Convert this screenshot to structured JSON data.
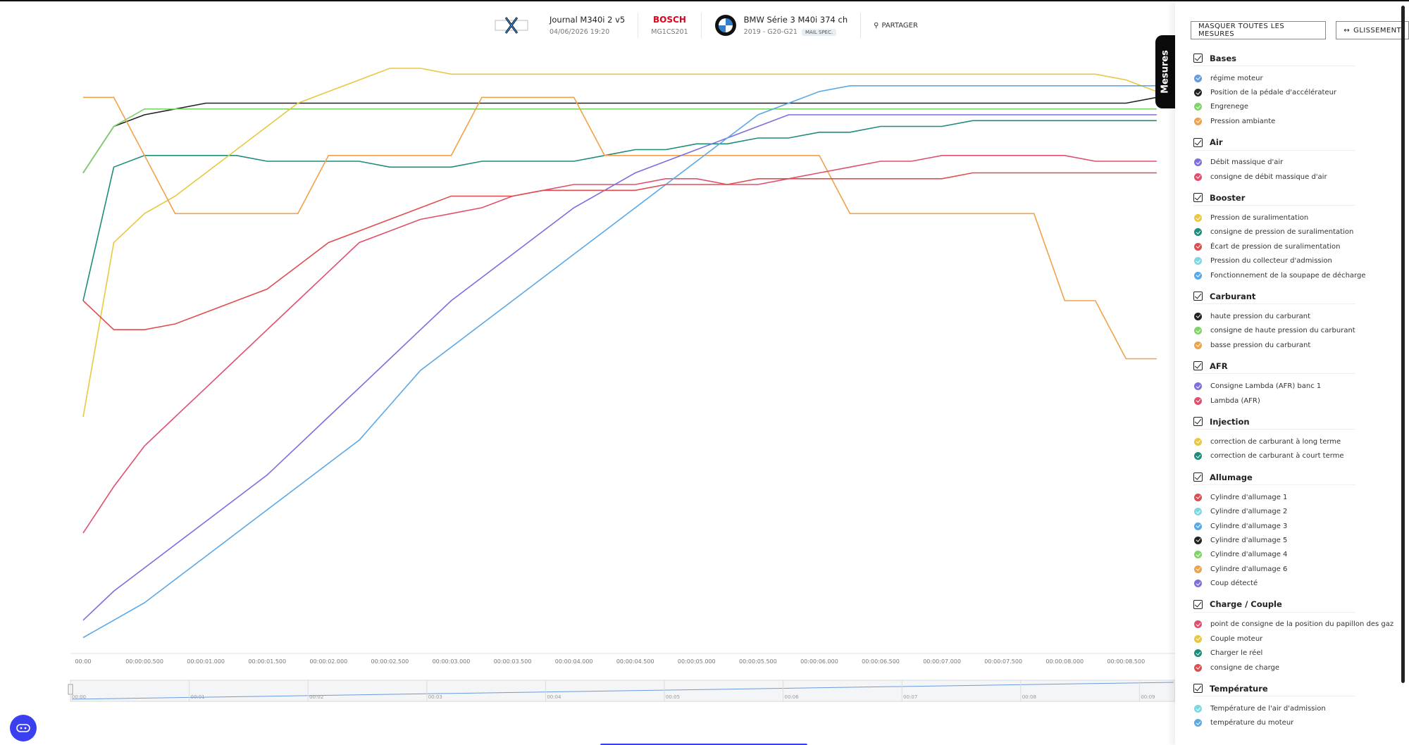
{
  "header": {
    "journal_title": "Journal M340i 2 v5",
    "journal_date": "04/06/2026 19:20",
    "ecu_brand": "BOSCH",
    "ecu_model": "MG1CS201",
    "car_name": "BMW Série 3 M40i 374 ch",
    "car_sub": "2019 - G20-G21",
    "car_badge": "MAIL SPEC.",
    "share_label": "PARTAGER"
  },
  "panel": {
    "tab_label": "Mesures",
    "hide_all_label": "MASQUER TOUTES LES MESURES",
    "slide_label": "GLISSEMENT",
    "groups": [
      {
        "title": "Bases",
        "items": [
          {
            "label": "régime moteur",
            "color": "#6a9ae0"
          },
          {
            "label": "Position de la pédale d'accélérateur",
            "color": "#222222"
          },
          {
            "label": "Engrenege",
            "color": "#7fd36a"
          },
          {
            "label": "Pression ambiante",
            "color": "#f0a24a"
          }
        ]
      },
      {
        "title": "Air",
        "items": [
          {
            "label": "Débit massique d'air",
            "color": "#7b6ee0"
          },
          {
            "label": "consigne de débit massique d'air",
            "color": "#e0506e"
          }
        ]
      },
      {
        "title": "Booster",
        "items": [
          {
            "label": "Pression de suralimentation",
            "color": "#e8c840"
          },
          {
            "label": "consigne de pression de suralimentation",
            "color": "#1e8c7a"
          },
          {
            "label": "Écart de pression de suralimentation",
            "color": "#e04d50"
          },
          {
            "label": "Pression du collecteur d'admission",
            "color": "#7ad8e0"
          },
          {
            "label": "Fonctionnement de la soupape de décharge",
            "color": "#5aa8e6"
          }
        ]
      },
      {
        "title": "Carburant",
        "items": [
          {
            "label": "haute pression du carburant",
            "color": "#222222"
          },
          {
            "label": "consigne de haute pression du carburant",
            "color": "#7fd36a"
          },
          {
            "label": "basse pression du carburant",
            "color": "#f0a24a"
          }
        ]
      },
      {
        "title": "AFR",
        "items": [
          {
            "label": "Consigne Lambda (AFR) banc 1",
            "color": "#7b6ee0"
          },
          {
            "label": "Lambda (AFR)",
            "color": "#e0506e"
          }
        ]
      },
      {
        "title": "Injection",
        "items": [
          {
            "label": "correction de carburant à long terme",
            "color": "#e8c840"
          },
          {
            "label": "correction de carburant à court terme",
            "color": "#1e8c7a"
          }
        ]
      },
      {
        "title": "Allumage",
        "items": [
          {
            "label": "Cylindre d'allumage 1",
            "color": "#e04d50"
          },
          {
            "label": "Cylindre d'allumage 2",
            "color": "#7ad8e0"
          },
          {
            "label": "Cylindre d'allumage 3",
            "color": "#5aa8e6"
          },
          {
            "label": "Cylindre d'allumage 5",
            "color": "#222222"
          },
          {
            "label": "Cylindre d'allumage 4",
            "color": "#7fd36a"
          },
          {
            "label": "Cylindre d'allumage 6",
            "color": "#f0a24a"
          },
          {
            "label": "Coup détecté",
            "color": "#7b6ee0"
          }
        ]
      },
      {
        "title": "Charge / Couple",
        "items": [
          {
            "label": "point de consigne de la position du papillon des gaz",
            "color": "#e0506e"
          },
          {
            "label": "Couple moteur",
            "color": "#e8c840"
          },
          {
            "label": "Charger le réel",
            "color": "#1e8c7a"
          },
          {
            "label": "consigne de charge",
            "color": "#e04d50"
          }
        ]
      },
      {
        "title": "Température",
        "items": [
          {
            "label": "Température de l'air d'admission",
            "color": "#7ad8e0"
          },
          {
            "label": "température du moteur",
            "color": "#5aa8e6"
          }
        ]
      }
    ]
  },
  "chart_data": {
    "type": "line",
    "x_ticks": [
      "00:00",
      "00:00:00.500",
      "00:00:01.000",
      "00:00:01.500",
      "00:00:02.000",
      "00:00:02.500",
      "00:00:03.000",
      "00:00:03.500",
      "00:00:04.000",
      "00:00:04.500",
      "00:00:05.000",
      "00:00:05.500",
      "00:00:06.000",
      "00:00:06.500",
      "00:00:07.000",
      "00:00:07.500",
      "00:00:08.000",
      "00:00:08.500"
    ],
    "overview_ticks": [
      "00:00",
      "00:01",
      "00:02",
      "00:03",
      "00:04",
      "00:05",
      "00:06",
      "00:07",
      "00:08",
      "00:09"
    ],
    "x": [
      0,
      0.25,
      0.5,
      0.75,
      1,
      1.25,
      1.5,
      1.75,
      2,
      2.25,
      2.5,
      2.75,
      3,
      3.25,
      3.5,
      3.75,
      4,
      4.25,
      4.5,
      4.75,
      5,
      5.25,
      5.5,
      5.75,
      6,
      6.25,
      6.5,
      6.75,
      7,
      7.25,
      7.5,
      7.75,
      8,
      8.25,
      8.5,
      8.75
    ],
    "series": [
      {
        "color": "#222222",
        "values": [
          0.82,
          0.9,
          0.92,
          0.93,
          0.94,
          0.94,
          0.94,
          0.94,
          0.94,
          0.94,
          0.94,
          0.94,
          0.94,
          0.94,
          0.94,
          0.94,
          0.94,
          0.94,
          0.94,
          0.94,
          0.94,
          0.94,
          0.94,
          0.94,
          0.94,
          0.94,
          0.94,
          0.94,
          0.94,
          0.94,
          0.94,
          0.94,
          0.94,
          0.94,
          0.94,
          0.95
        ]
      },
      {
        "color": "#7fd36a",
        "values": [
          0.82,
          0.9,
          0.93,
          0.93,
          0.93,
          0.93,
          0.93,
          0.93,
          0.93,
          0.93,
          0.93,
          0.93,
          0.93,
          0.93,
          0.93,
          0.93,
          0.93,
          0.93,
          0.93,
          0.93,
          0.93,
          0.93,
          0.93,
          0.93,
          0.93,
          0.93,
          0.93,
          0.93,
          0.93,
          0.93,
          0.93,
          0.93,
          0.93,
          0.93,
          0.93,
          0.93
        ]
      },
      {
        "color": "#1e8c7a",
        "values": [
          0.6,
          0.83,
          0.85,
          0.85,
          0.85,
          0.85,
          0.84,
          0.84,
          0.84,
          0.84,
          0.83,
          0.83,
          0.83,
          0.84,
          0.84,
          0.84,
          0.84,
          0.85,
          0.86,
          0.86,
          0.87,
          0.87,
          0.88,
          0.88,
          0.89,
          0.89,
          0.9,
          0.9,
          0.9,
          0.91,
          0.91,
          0.91,
          0.91,
          0.91,
          0.91,
          0.91
        ]
      },
      {
        "color": "#e8c840",
        "values": [
          0.4,
          0.7,
          0.75,
          0.78,
          0.82,
          0.86,
          0.9,
          0.94,
          0.96,
          0.98,
          1.0,
          1.0,
          0.99,
          0.99,
          0.99,
          0.99,
          0.99,
          0.99,
          0.99,
          0.99,
          0.99,
          0.99,
          0.99,
          0.99,
          0.99,
          0.99,
          0.99,
          0.99,
          0.99,
          0.99,
          0.99,
          0.99,
          0.99,
          0.99,
          0.98,
          0.96
        ]
      },
      {
        "color": "#f0a24a",
        "values": [
          0.95,
          0.95,
          0.85,
          0.75,
          0.75,
          0.75,
          0.75,
          0.75,
          0.85,
          0.85,
          0.85,
          0.85,
          0.85,
          0.95,
          0.95,
          0.95,
          0.95,
          0.85,
          0.85,
          0.85,
          0.85,
          0.85,
          0.85,
          0.85,
          0.85,
          0.75,
          0.75,
          0.75,
          0.75,
          0.75,
          0.75,
          0.75,
          0.6,
          0.6,
          0.5,
          0.5
        ]
      },
      {
        "color": "#e0506e",
        "values": [
          0.2,
          0.28,
          0.35,
          0.4,
          0.45,
          0.5,
          0.55,
          0.6,
          0.65,
          0.7,
          0.72,
          0.74,
          0.75,
          0.76,
          0.78,
          0.79,
          0.8,
          0.8,
          0.8,
          0.81,
          0.81,
          0.8,
          0.8,
          0.81,
          0.82,
          0.83,
          0.84,
          0.84,
          0.85,
          0.85,
          0.85,
          0.85,
          0.85,
          0.84,
          0.84,
          0.84
        ]
      },
      {
        "color": "#7b6ee0",
        "values": [
          0.05,
          0.1,
          0.14,
          0.18,
          0.22,
          0.26,
          0.3,
          0.35,
          0.4,
          0.45,
          0.5,
          0.55,
          0.6,
          0.64,
          0.68,
          0.72,
          0.76,
          0.79,
          0.82,
          0.84,
          0.86,
          0.88,
          0.9,
          0.92,
          0.92,
          0.92,
          0.92,
          0.92,
          0.92,
          0.92,
          0.92,
          0.92,
          0.92,
          0.92,
          0.92,
          0.92
        ]
      },
      {
        "color": "#5aa8e6",
        "values": [
          0.02,
          0.05,
          0.08,
          0.12,
          0.16,
          0.2,
          0.24,
          0.28,
          0.32,
          0.36,
          0.42,
          0.48,
          0.52,
          0.56,
          0.6,
          0.64,
          0.68,
          0.72,
          0.76,
          0.8,
          0.84,
          0.88,
          0.92,
          0.94,
          0.96,
          0.97,
          0.97,
          0.97,
          0.97,
          0.97,
          0.97,
          0.97,
          0.97,
          0.97,
          0.97,
          0.97
        ]
      },
      {
        "color": "#e04d50",
        "values": [
          0.6,
          0.55,
          0.55,
          0.56,
          0.58,
          0.6,
          0.62,
          0.66,
          0.7,
          0.72,
          0.74,
          0.76,
          0.78,
          0.78,
          0.78,
          0.79,
          0.79,
          0.79,
          0.79,
          0.8,
          0.8,
          0.8,
          0.81,
          0.81,
          0.81,
          0.81,
          0.81,
          0.81,
          0.81,
          0.82,
          0.82,
          0.82,
          0.82,
          0.82,
          0.82,
          0.82
        ]
      }
    ]
  }
}
